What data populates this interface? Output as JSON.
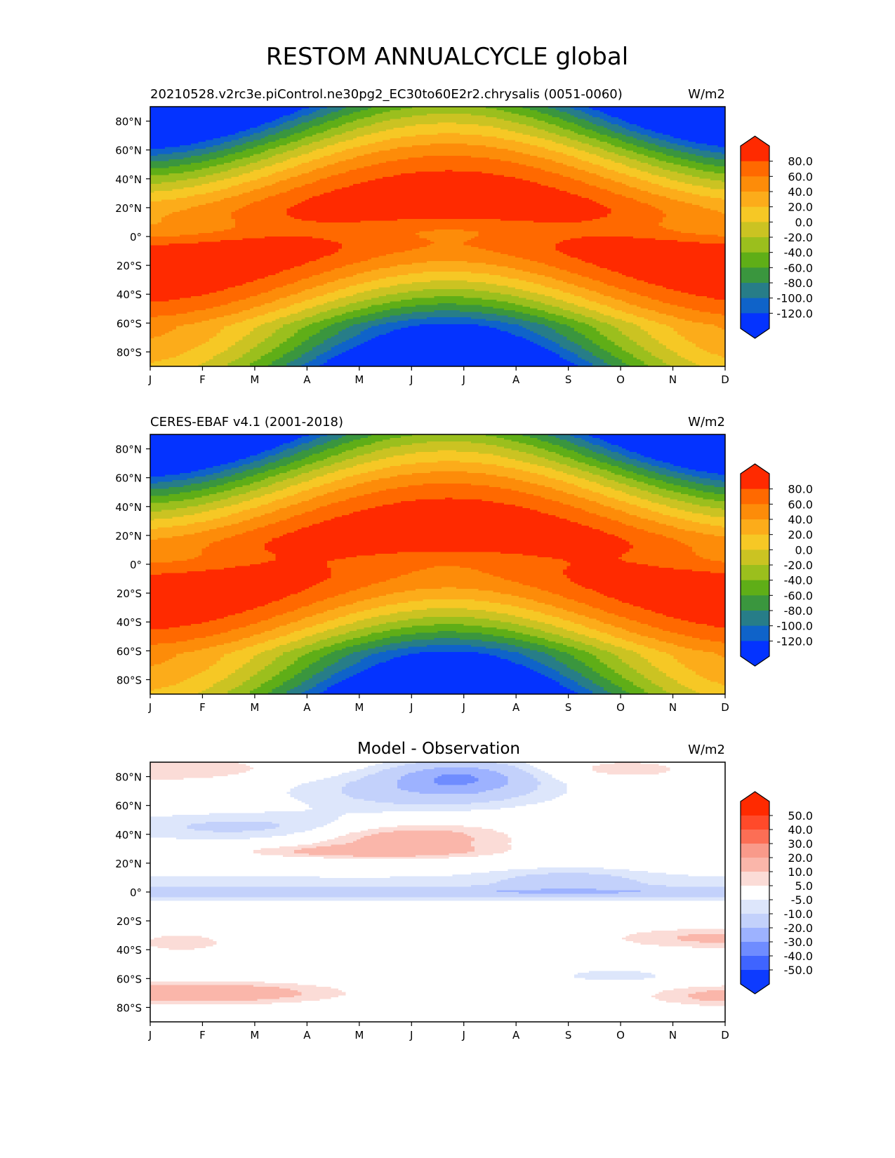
{
  "figure": {
    "title": "RESTOM ANNUALCYCLE global"
  },
  "chart_data": [
    {
      "type": "heatmap",
      "title_left": "20210528.v2rc3e.piControl.ne30pg2_EC30to60E2r2.chrysalis (0051-0060)",
      "title_center": "",
      "units": "W/m2",
      "x_ticks": [
        "J",
        "F",
        "M",
        "A",
        "M",
        "J",
        "J",
        "A",
        "S",
        "O",
        "N",
        "D"
      ],
      "y_ticks": [
        "80°N",
        "60°N",
        "40°N",
        "20°N",
        "0°",
        "20°S",
        "40°S",
        "60°S",
        "80°S"
      ],
      "y_tick_values": [
        80,
        60,
        40,
        20,
        0,
        -20,
        -40,
        -60,
        -80
      ],
      "ylim": [
        -90,
        90
      ],
      "grid": false,
      "extend": "both",
      "colorbar_levels": [
        -140,
        -120,
        -100,
        -80,
        -60,
        -40,
        -20,
        0,
        20,
        40,
        60,
        80,
        100
      ],
      "colorbar_labels": [
        "80.0",
        "60.0",
        "40.0",
        "20.0",
        "0.0",
        "-20.0",
        "-40.0",
        "-60.0",
        "-80.0",
        "-100.0",
        "-120.0"
      ],
      "colorbar_label_values": [
        80,
        60,
        40,
        20,
        0,
        -20,
        -40,
        -60,
        -80,
        -100,
        -120
      ],
      "colors": [
        "#0433ff",
        "#0f63c9",
        "#277d88",
        "#3a963e",
        "#5fae17",
        "#9bbf1d",
        "#cbc322",
        "#f6c825",
        "#fcac1a",
        "#fd8c09",
        "#ff6900",
        "#ff2a00"
      ],
      "color_low_extend": "#0433ff",
      "color_high_extend": "#ff2a00",
      "field": "model"
    },
    {
      "type": "heatmap",
      "title_left": "CERES-EBAF v4.1 (2001-2018)",
      "title_center": "",
      "units": "W/m2",
      "x_ticks": [
        "J",
        "F",
        "M",
        "A",
        "M",
        "J",
        "J",
        "A",
        "S",
        "O",
        "N",
        "D"
      ],
      "y_ticks": [
        "80°N",
        "60°N",
        "40°N",
        "20°N",
        "0°",
        "20°S",
        "40°S",
        "60°S",
        "80°S"
      ],
      "y_tick_values": [
        80,
        60,
        40,
        20,
        0,
        -20,
        -40,
        -60,
        -80
      ],
      "ylim": [
        -90,
        90
      ],
      "grid": false,
      "extend": "both",
      "colorbar_levels": [
        -140,
        -120,
        -100,
        -80,
        -60,
        -40,
        -20,
        0,
        20,
        40,
        60,
        80,
        100
      ],
      "colorbar_labels": [
        "80.0",
        "60.0",
        "40.0",
        "20.0",
        "0.0",
        "-20.0",
        "-40.0",
        "-60.0",
        "-80.0",
        "-100.0",
        "-120.0"
      ],
      "colorbar_label_values": [
        80,
        60,
        40,
        20,
        0,
        -20,
        -40,
        -60,
        -80,
        -100,
        -120
      ],
      "colors": [
        "#0433ff",
        "#0f63c9",
        "#277d88",
        "#3a963e",
        "#5fae17",
        "#9bbf1d",
        "#cbc322",
        "#f6c825",
        "#fcac1a",
        "#fd8c09",
        "#ff6900",
        "#ff2a00"
      ],
      "color_low_extend": "#0433ff",
      "color_high_extend": "#ff2a00",
      "field": "obs"
    },
    {
      "type": "heatmap",
      "title_left": "",
      "title_center": "Model - Observation",
      "units": "W/m2",
      "x_ticks": [
        "J",
        "F",
        "M",
        "A",
        "M",
        "J",
        "J",
        "A",
        "S",
        "O",
        "N",
        "D"
      ],
      "y_ticks": [
        "80°N",
        "60°N",
        "40°N",
        "20°N",
        "0°",
        "20°S",
        "40°S",
        "60°S",
        "80°S"
      ],
      "y_tick_values": [
        80,
        60,
        40,
        20,
        0,
        -20,
        -40,
        -60,
        -80
      ],
      "ylim": [
        -90,
        90
      ],
      "grid": false,
      "extend": "both",
      "colorbar_levels": [
        -60,
        -50,
        -40,
        -30,
        -20,
        -10,
        -5,
        5,
        10,
        20,
        30,
        40,
        50,
        60
      ],
      "colorbar_labels": [
        "50.0",
        "40.0",
        "30.0",
        "20.0",
        "10.0",
        "5.0",
        "-5.0",
        "-10.0",
        "-20.0",
        "-30.0",
        "-40.0",
        "-50.0"
      ],
      "colorbar_label_values": [
        50,
        40,
        30,
        20,
        10,
        5,
        -5,
        -10,
        -20,
        -30,
        -40,
        -50
      ],
      "colors": [
        "#0d3bff",
        "#3f64ff",
        "#6f8cff",
        "#9db2ff",
        "#c3d1fb",
        "#dde6fb",
        "#ffffff",
        "#fbdcd7",
        "#fab6aa",
        "#f99a8a",
        "#fc6e55",
        "#ff4a2a",
        "#ff2a00"
      ],
      "color_low_extend": "#0d3bff",
      "color_high_extend": "#ff2a00",
      "field": "diff"
    }
  ]
}
